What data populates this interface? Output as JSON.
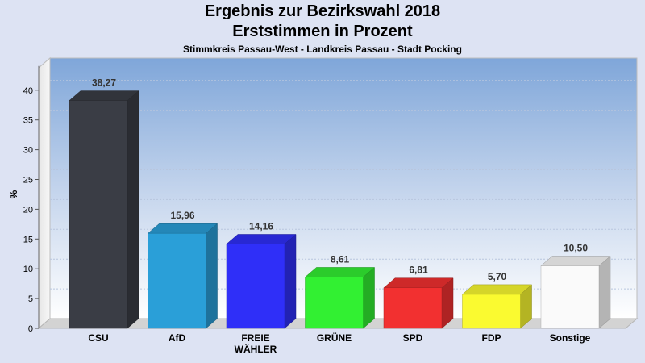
{
  "chart_data": {
    "type": "bar",
    "title": "Ergebnis zur Bezirkswahl 2018",
    "subtitle": "Erststimmen in Prozent",
    "subtitle2": "Stimmkreis Passau-West - Landkreis Passau - Stadt Pocking",
    "ylabel": "%",
    "xlabel": "",
    "ylim": [
      0,
      40
    ],
    "yticks": [
      0,
      5,
      10,
      15,
      20,
      25,
      30,
      35,
      40
    ],
    "categories": [
      "CSU",
      "AfD",
      "FREIE WÄHLER",
      "GRÜNE",
      "SPD",
      "FDP",
      "Sonstige"
    ],
    "category_lines": [
      [
        "CSU"
      ],
      [
        "AfD"
      ],
      [
        "FREIE",
        "WÄHLER"
      ],
      [
        "GRÜNE"
      ],
      [
        "SPD"
      ],
      [
        "FDP"
      ],
      [
        "Sonstige"
      ]
    ],
    "values": [
      38.27,
      15.96,
      14.16,
      8.61,
      6.81,
      5.7,
      10.5
    ],
    "value_labels": [
      "38,27",
      "15,96",
      "14,16",
      "8,61",
      "6,81",
      "5,70",
      "10,50"
    ],
    "colors": [
      "#3a3d45",
      "#2a9fd8",
      "#2f2ff8",
      "#32f032",
      "#f23030",
      "#fafa30",
      "#fafafa"
    ],
    "grid": true,
    "legend": "none"
  }
}
